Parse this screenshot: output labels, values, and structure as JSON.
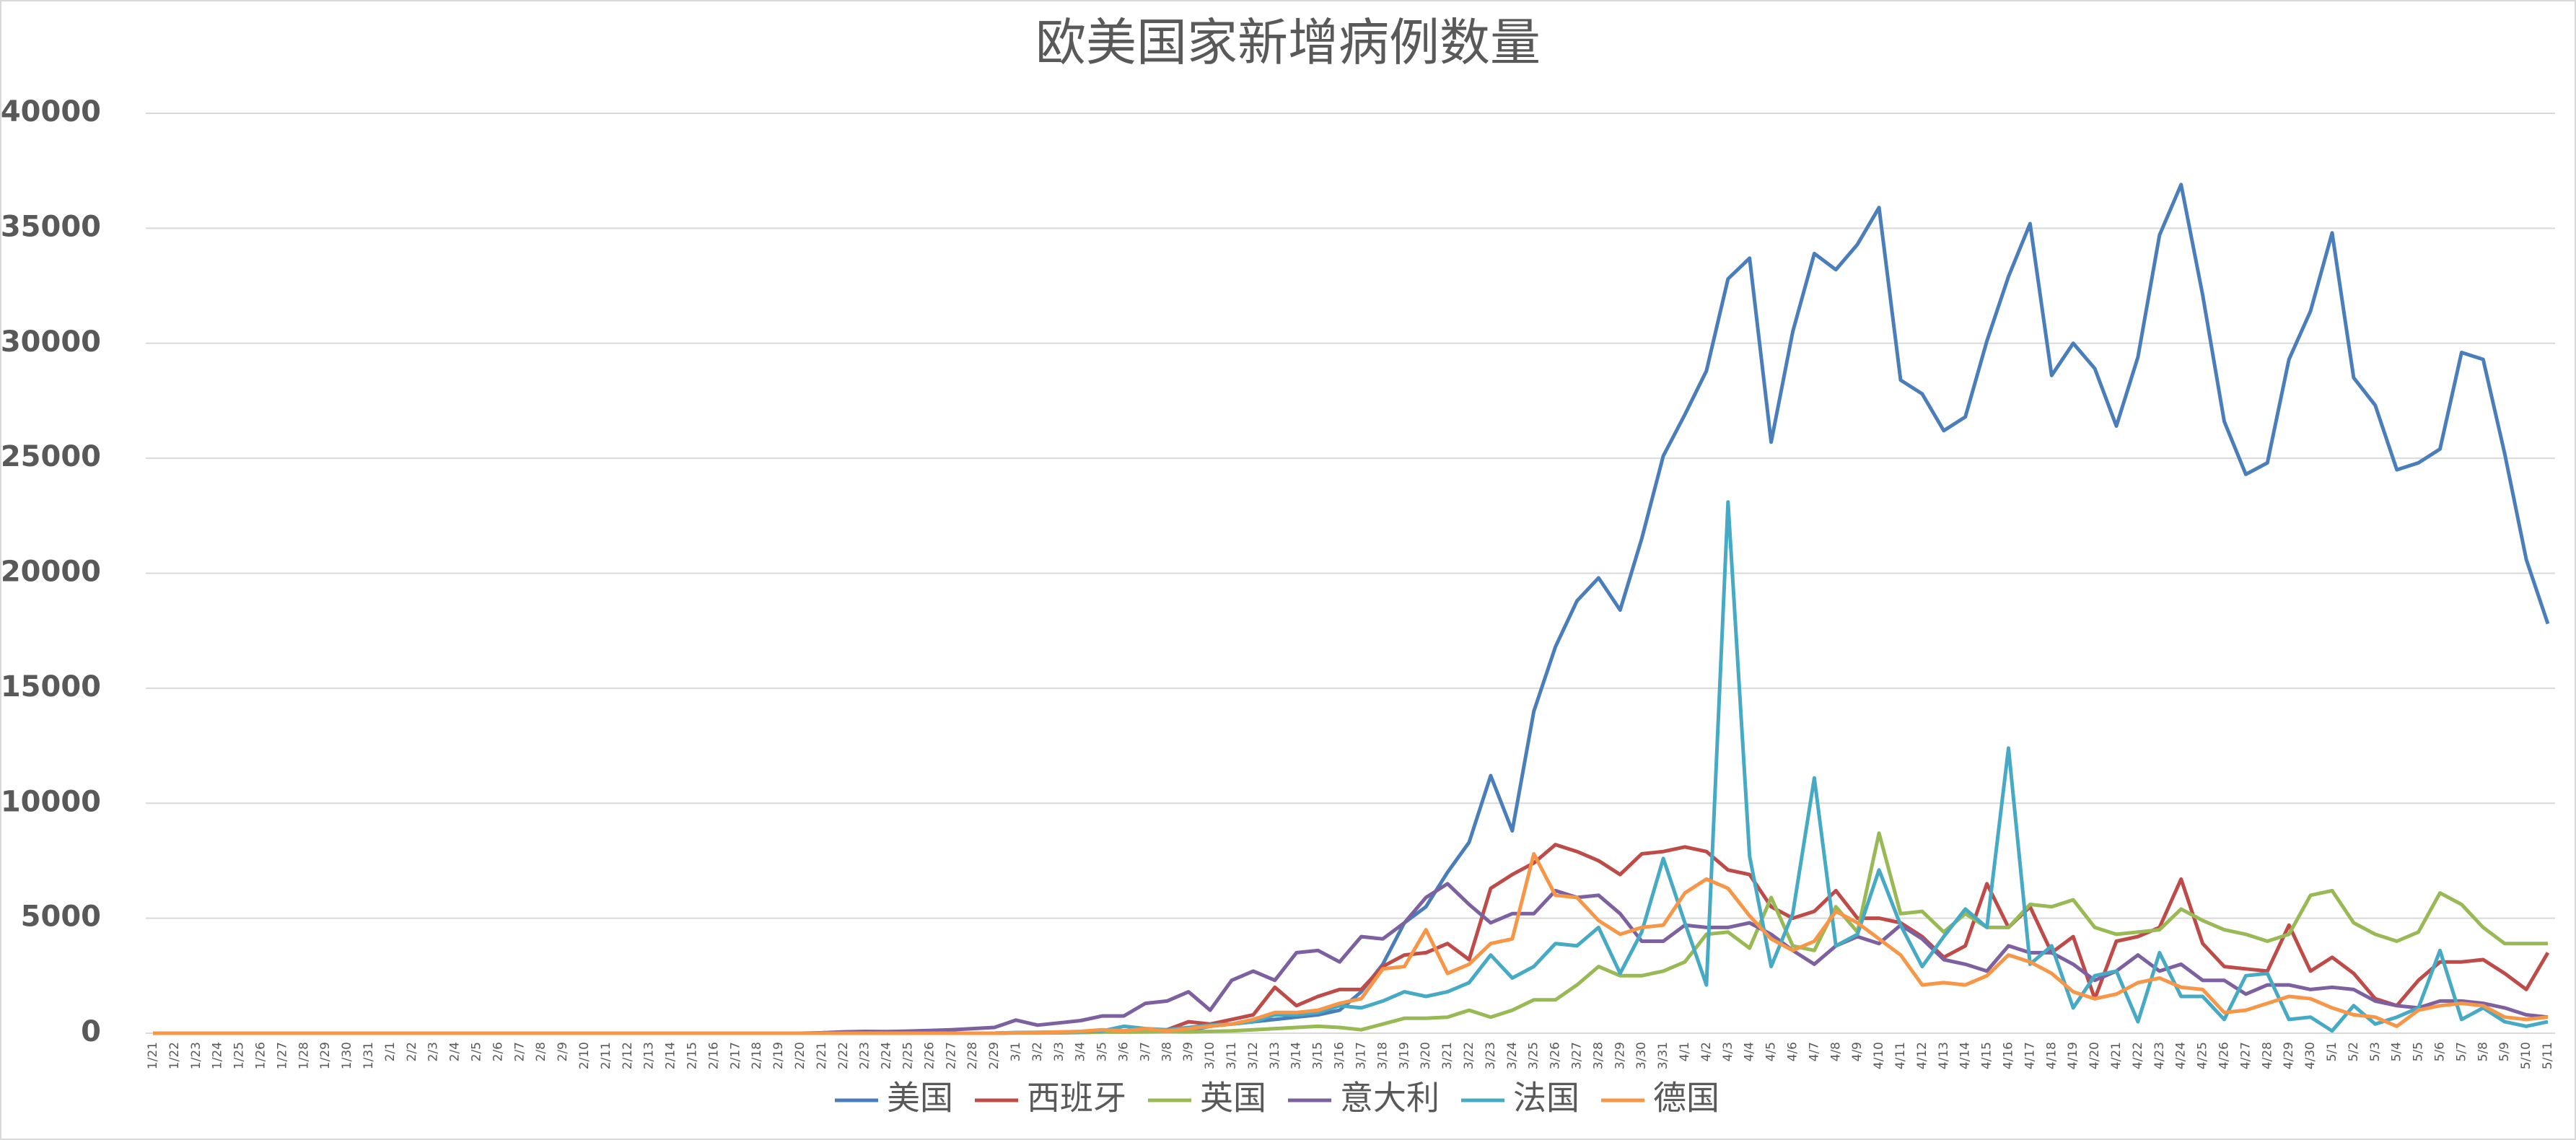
{
  "chart_data": {
    "type": "line",
    "title": "欧美国家新增病例数量",
    "categories": [
      "1/21",
      "1/22",
      "1/23",
      "1/24",
      "1/25",
      "1/26",
      "1/27",
      "1/28",
      "1/29",
      "1/30",
      "1/31",
      "2/1",
      "2/2",
      "2/3",
      "2/4",
      "2/5",
      "2/6",
      "2/7",
      "2/8",
      "2/9",
      "2/10",
      "2/11",
      "2/12",
      "2/13",
      "2/14",
      "2/15",
      "2/16",
      "2/17",
      "2/18",
      "2/19",
      "2/20",
      "2/21",
      "2/22",
      "2/23",
      "2/24",
      "2/25",
      "2/26",
      "2/27",
      "2/28",
      "2/29",
      "3/1",
      "3/2",
      "3/3",
      "3/4",
      "3/5",
      "3/6",
      "3/7",
      "3/8",
      "3/9",
      "3/10",
      "3/11",
      "3/12",
      "3/13",
      "3/14",
      "3/15",
      "3/16",
      "3/17",
      "3/18",
      "3/19",
      "3/20",
      "3/21",
      "3/22",
      "3/23",
      "3/24",
      "3/25",
      "3/26",
      "3/27",
      "3/28",
      "3/29",
      "3/30",
      "3/31",
      "4/1",
      "4/2",
      "4/3",
      "4/4",
      "4/5",
      "4/6",
      "4/7",
      "4/8",
      "4/9",
      "4/10",
      "4/11",
      "4/12",
      "4/13",
      "4/14",
      "4/15",
      "4/16",
      "4/17",
      "4/18",
      "4/19",
      "4/20",
      "4/21",
      "4/22",
      "4/23",
      "4/24",
      "4/25",
      "4/26",
      "4/27",
      "4/28",
      "4/29",
      "4/30",
      "5/1",
      "5/2",
      "5/3",
      "5/4",
      "5/5",
      "5/6",
      "5/7",
      "5/8",
      "5/9",
      "5/10",
      "5/11"
    ],
    "series": [
      {
        "name": "美国",
        "color": "#4a7ebb",
        "values": [
          0,
          0,
          0,
          0,
          0,
          0,
          0,
          0,
          0,
          0,
          0,
          0,
          0,
          0,
          0,
          0,
          0,
          0,
          0,
          0,
          0,
          0,
          0,
          0,
          0,
          0,
          0,
          0,
          0,
          0,
          0,
          0,
          0,
          0,
          0,
          0,
          0,
          0,
          0,
          0,
          20,
          20,
          20,
          30,
          70,
          60,
          120,
          100,
          120,
          300,
          400,
          500,
          600,
          700,
          800,
          1000,
          1800,
          3000,
          4800,
          5500,
          7000,
          8300,
          11200,
          8800,
          14000,
          16800,
          18800,
          19800,
          18400,
          21500,
          25100,
          26900,
          28800,
          32800,
          33700,
          25700,
          30500,
          33900,
          33200,
          34300,
          35900,
          28400,
          27800,
          26200,
          26800,
          30100,
          32900,
          35200,
          28600,
          30000,
          28900,
          26400,
          29400,
          34700,
          36900,
          32100,
          26600,
          24300,
          24800,
          29300,
          31400,
          34800,
          28500,
          27300,
          24500,
          24800,
          25400,
          29600,
          29300,
          25200,
          20600,
          17800
        ]
      },
      {
        "name": "西班牙",
        "color": "#be4b48",
        "values": [
          0,
          0,
          0,
          0,
          0,
          0,
          0,
          0,
          0,
          0,
          0,
          0,
          0,
          0,
          0,
          0,
          0,
          0,
          0,
          0,
          0,
          0,
          0,
          0,
          0,
          0,
          0,
          0,
          0,
          0,
          0,
          0,
          0,
          0,
          0,
          0,
          0,
          0,
          0,
          0,
          20,
          30,
          40,
          50,
          60,
          100,
          120,
          150,
          500,
          400,
          600,
          800,
          2000,
          1200,
          1600,
          1900,
          1900,
          2900,
          3400,
          3500,
          3900,
          3200,
          6300,
          6900,
          7400,
          8200,
          7900,
          7500,
          6900,
          7800,
          7900,
          8100,
          7900,
          7100,
          6900,
          5500,
          5000,
          5300,
          6200,
          5000,
          5000,
          4800,
          4200,
          3300,
          3800,
          6500,
          4600,
          5500,
          3500,
          4200,
          1500,
          4000,
          4200,
          4600,
          6700,
          3900,
          2900,
          2800,
          2700,
          4700,
          2700,
          3300,
          2600,
          1500,
          1200,
          2300,
          3100,
          3100,
          3200,
          2600,
          1900,
          3500
        ]
      },
      {
        "name": "英国",
        "color": "#98b954",
        "values": [
          0,
          0,
          0,
          0,
          0,
          0,
          0,
          0,
          0,
          0,
          0,
          0,
          0,
          0,
          0,
          0,
          0,
          0,
          0,
          0,
          0,
          0,
          0,
          0,
          0,
          0,
          0,
          0,
          0,
          0,
          0,
          0,
          0,
          0,
          0,
          0,
          0,
          0,
          0,
          0,
          10,
          10,
          20,
          30,
          50,
          50,
          60,
          70,
          60,
          80,
          100,
          150,
          200,
          250,
          300,
          250,
          150,
          400,
          650,
          650,
          700,
          1000,
          700,
          1000,
          1450,
          1450,
          2100,
          2900,
          2500,
          2500,
          2700,
          3100,
          4300,
          4400,
          3700,
          5900,
          3800,
          3600,
          5500,
          4400,
          8700,
          5200,
          5300,
          4400,
          5200,
          4600,
          4600,
          5600,
          5500,
          5800,
          4600,
          4300,
          4400,
          4500,
          5400,
          4900,
          4500,
          4300,
          4000,
          4300,
          6000,
          6200,
          4800,
          4300,
          4000,
          4400,
          6100,
          5600,
          4600,
          3900,
          3900,
          3900
        ]
      },
      {
        "name": "意大利",
        "color": "#7d60a0",
        "values": [
          0,
          0,
          0,
          0,
          0,
          0,
          0,
          0,
          0,
          0,
          0,
          0,
          0,
          0,
          0,
          0,
          0,
          0,
          0,
          0,
          0,
          0,
          0,
          0,
          0,
          0,
          0,
          0,
          0,
          0,
          0,
          20,
          60,
          80,
          70,
          90,
          120,
          150,
          200,
          250,
          570,
          350,
          450,
          550,
          750,
          750,
          1300,
          1400,
          1800,
          1000,
          2300,
          2700,
          2300,
          3500,
          3600,
          3100,
          4200,
          4100,
          4800,
          5900,
          6500,
          5600,
          4800,
          5200,
          5200,
          6200,
          5900,
          6000,
          5200,
          4000,
          4000,
          4700,
          4600,
          4600,
          4800,
          4300,
          3600,
          3000,
          3800,
          4200,
          3900,
          4700,
          4100,
          3200,
          3000,
          2700,
          3800,
          3500,
          3500,
          3000,
          2300,
          2700,
          3400,
          2700,
          3000,
          2300,
          2300,
          1700,
          2100,
          2100,
          1900,
          2000,
          1900,
          1400,
          1200,
          1100,
          1400,
          1400,
          1300,
          1100,
          800,
          700
        ]
      },
      {
        "name": "法国",
        "color": "#46aac5",
        "values": [
          0,
          0,
          0,
          0,
          0,
          0,
          0,
          0,
          0,
          0,
          0,
          0,
          0,
          0,
          0,
          0,
          0,
          0,
          0,
          0,
          0,
          0,
          0,
          0,
          0,
          0,
          0,
          0,
          0,
          0,
          0,
          0,
          0,
          0,
          0,
          0,
          0,
          0,
          0,
          0,
          30,
          40,
          50,
          60,
          100,
          300,
          200,
          150,
          250,
          350,
          400,
          500,
          800,
          800,
          900,
          1200,
          1100,
          1400,
          1800,
          1600,
          1800,
          2200,
          3400,
          2400,
          2900,
          3900,
          3800,
          4600,
          2600,
          4400,
          7600,
          4800,
          2100,
          23100,
          7700,
          2900,
          5200,
          11100,
          3800,
          4300,
          7100,
          4700,
          2900,
          4200,
          5400,
          4600,
          12400,
          3000,
          3800,
          1100,
          2500,
          2700,
          500,
          3500,
          1600,
          1600,
          600,
          2500,
          2600,
          600,
          700,
          100,
          1200,
          400,
          700,
          1100,
          3600,
          600,
          1100,
          500,
          300,
          500
        ]
      },
      {
        "name": "德国",
        "color": "#f79646",
        "values": [
          0,
          0,
          0,
          0,
          0,
          0,
          0,
          0,
          0,
          0,
          0,
          0,
          0,
          0,
          0,
          0,
          0,
          0,
          0,
          0,
          0,
          0,
          0,
          0,
          0,
          0,
          0,
          0,
          0,
          0,
          0,
          0,
          0,
          0,
          0,
          0,
          0,
          0,
          0,
          0,
          20,
          30,
          50,
          80,
          150,
          100,
          200,
          100,
          200,
          300,
          400,
          600,
          900,
          900,
          1000,
          1300,
          1500,
          2800,
          2900,
          4500,
          2600,
          3000,
          3900,
          4100,
          7800,
          6000,
          5900,
          4900,
          4300,
          4600,
          4700,
          6100,
          6700,
          6300,
          5100,
          4100,
          3600,
          4000,
          5300,
          4800,
          4100,
          3400,
          2100,
          2200,
          2100,
          2500,
          3400,
          3100,
          2600,
          1800,
          1500,
          1700,
          2200,
          2400,
          2000,
          1900,
          900,
          1000,
          1300,
          1600,
          1500,
          1100,
          800,
          700,
          300,
          1000,
          1200,
          1300,
          1200,
          700,
          600,
          700
        ]
      }
    ],
    "ylim": [
      0,
      40000
    ],
    "yticks": [
      0,
      5000,
      10000,
      15000,
      20000,
      25000,
      30000,
      35000,
      40000
    ],
    "grid": true,
    "legend": "bottom"
  }
}
